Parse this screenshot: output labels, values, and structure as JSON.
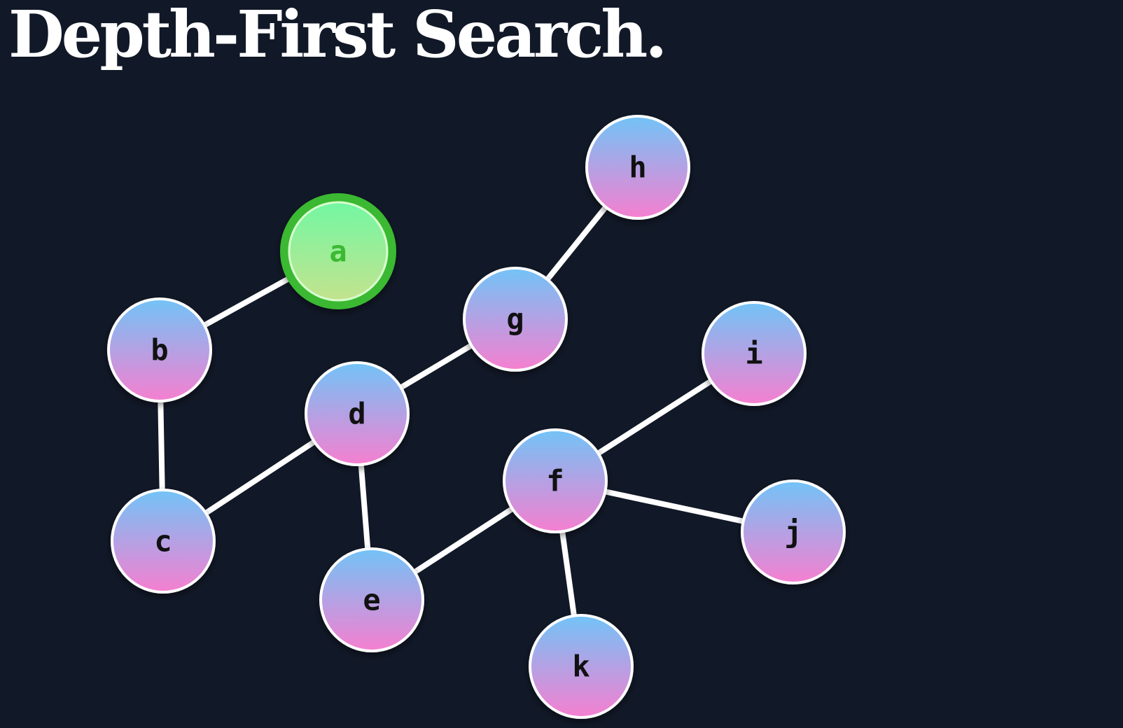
{
  "title": "Depth-First Search.",
  "colors": {
    "background": "#111827",
    "edge": "#ffffff",
    "node_fill_top": "#72c3f7",
    "node_fill_bottom": "#f67fd0",
    "node_stroke": "#ffffff",
    "node_label": "#111111",
    "active_fill_top": "#73f7a2",
    "active_fill_bottom": "#c3e38e",
    "active_ring": "#3bb932",
    "active_label": "#3bb932"
  },
  "graph": {
    "active_node": "a",
    "nodes": [
      {
        "id": "a",
        "label": "a",
        "state": "active"
      },
      {
        "id": "b",
        "label": "b",
        "state": "default"
      },
      {
        "id": "c",
        "label": "c",
        "state": "default"
      },
      {
        "id": "d",
        "label": "d",
        "state": "default"
      },
      {
        "id": "e",
        "label": "e",
        "state": "default"
      },
      {
        "id": "f",
        "label": "f",
        "state": "default"
      },
      {
        "id": "g",
        "label": "g",
        "state": "default"
      },
      {
        "id": "h",
        "label": "h",
        "state": "default"
      },
      {
        "id": "i",
        "label": "i",
        "state": "default"
      },
      {
        "id": "j",
        "label": "j",
        "state": "default"
      },
      {
        "id": "k",
        "label": "k",
        "state": "default"
      }
    ],
    "edges": [
      [
        "a",
        "b"
      ],
      [
        "b",
        "c"
      ],
      [
        "c",
        "d"
      ],
      [
        "d",
        "e"
      ],
      [
        "d",
        "g"
      ],
      [
        "g",
        "h"
      ],
      [
        "e",
        "f"
      ],
      [
        "f",
        "i"
      ],
      [
        "f",
        "j"
      ],
      [
        "f",
        "k"
      ]
    ]
  }
}
